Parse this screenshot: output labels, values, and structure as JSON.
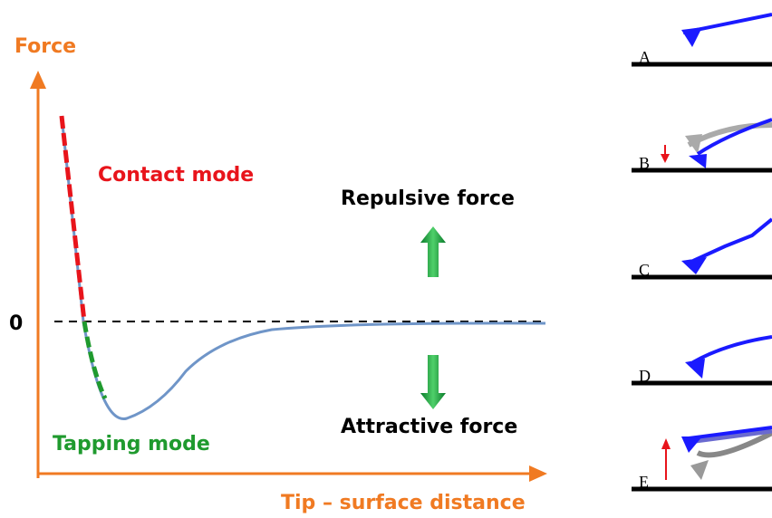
{
  "y_axis_label": "Force",
  "x_axis_label": "Tip – surface distance",
  "zero_label": "0",
  "contact_mode": "Contact mode",
  "tapping_mode": "Tapping mode",
  "repulsive": "Repulsive force",
  "attractive": "Attractive force",
  "panels": [
    {
      "label": "A"
    },
    {
      "label": "B"
    },
    {
      "label": "C"
    },
    {
      "label": "D"
    },
    {
      "label": "E"
    }
  ]
}
